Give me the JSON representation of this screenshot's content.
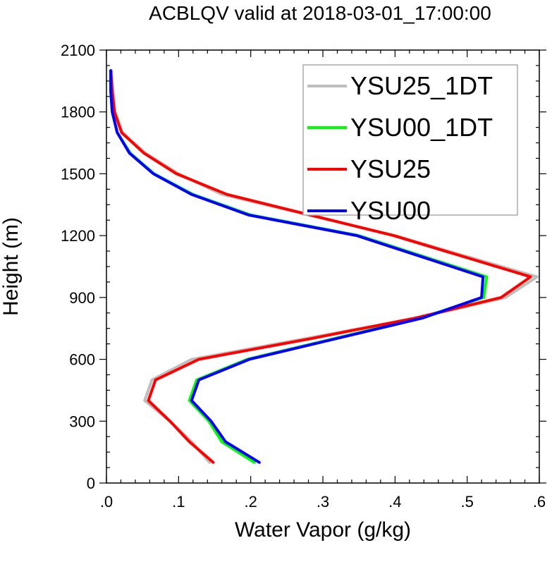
{
  "chart_data": {
    "type": "line",
    "title": "ACBLQV valid at 2018-03-01_17:00:00",
    "xlabel": "Water Vapor (g/kg)",
    "ylabel": "Height (m)",
    "xlim": [
      0.0,
      0.6
    ],
    "ylim": [
      0,
      2100
    ],
    "x_ticks": [
      0.0,
      0.1,
      0.2,
      0.3,
      0.4,
      0.5,
      0.6
    ],
    "x_tick_labels": [
      ".0",
      ".1",
      ".2",
      ".3",
      ".4",
      ".5",
      ".6"
    ],
    "y_ticks": [
      0,
      300,
      600,
      900,
      1200,
      1500,
      1800,
      2100
    ],
    "y_tick_labels": [
      "0",
      "300",
      "600",
      "900",
      "1200",
      "1500",
      "1800",
      "2100"
    ],
    "grid": false,
    "legend_position": "top-right",
    "series": [
      {
        "name": "YSU25_1DT",
        "color": "#bebebe",
        "points": [
          [
            0.143,
            100
          ],
          [
            0.118,
            200
          ],
          [
            0.088,
            300
          ],
          [
            0.053,
            400
          ],
          [
            0.063,
            500
          ],
          [
            0.118,
            600
          ],
          [
            0.275,
            700
          ],
          [
            0.43,
            800
          ],
          [
            0.553,
            900
          ],
          [
            0.597,
            1000
          ],
          [
            0.4,
            1200
          ],
          [
            0.16,
            1400
          ],
          [
            0.1,
            1500
          ],
          [
            0.054,
            1600
          ],
          [
            0.022,
            1700
          ],
          [
            0.012,
            1800
          ],
          [
            0.009,
            1900
          ],
          [
            0.007,
            2000
          ]
        ]
      },
      {
        "name": "YSU00_1DT",
        "color": "#00ff00",
        "points": [
          [
            0.205,
            100
          ],
          [
            0.16,
            200
          ],
          [
            0.142,
            300
          ],
          [
            0.115,
            400
          ],
          [
            0.125,
            500
          ],
          [
            0.195,
            600
          ],
          [
            0.315,
            700
          ],
          [
            0.435,
            800
          ],
          [
            0.523,
            900
          ],
          [
            0.527,
            1000
          ],
          [
            0.35,
            1200
          ],
          [
            0.2,
            1300
          ],
          [
            0.12,
            1400
          ],
          [
            0.066,
            1500
          ],
          [
            0.033,
            1600
          ],
          [
            0.015,
            1700
          ],
          [
            0.008,
            1800
          ],
          [
            0.006,
            1900
          ],
          [
            0.006,
            2000
          ]
        ]
      },
      {
        "name": "YSU25",
        "color": "#ff0000",
        "points": [
          [
            0.148,
            100
          ],
          [
            0.115,
            200
          ],
          [
            0.088,
            300
          ],
          [
            0.058,
            400
          ],
          [
            0.068,
            500
          ],
          [
            0.128,
            600
          ],
          [
            0.283,
            700
          ],
          [
            0.428,
            800
          ],
          [
            0.547,
            900
          ],
          [
            0.588,
            1000
          ],
          [
            0.398,
            1200
          ],
          [
            0.167,
            1400
          ],
          [
            0.097,
            1500
          ],
          [
            0.052,
            1600
          ],
          [
            0.021,
            1700
          ],
          [
            0.011,
            1800
          ],
          [
            0.008,
            1900
          ],
          [
            0.006,
            2000
          ]
        ]
      },
      {
        "name": "YSU00",
        "color": "#0000ff",
        "points": [
          [
            0.212,
            100
          ],
          [
            0.165,
            200
          ],
          [
            0.145,
            300
          ],
          [
            0.118,
            400
          ],
          [
            0.128,
            500
          ],
          [
            0.198,
            600
          ],
          [
            0.318,
            700
          ],
          [
            0.438,
            800
          ],
          [
            0.52,
            900
          ],
          [
            0.522,
            1000
          ],
          [
            0.347,
            1200
          ],
          [
            0.197,
            1300
          ],
          [
            0.118,
            1400
          ],
          [
            0.065,
            1500
          ],
          [
            0.032,
            1600
          ],
          [
            0.015,
            1700
          ],
          [
            0.008,
            1800
          ],
          [
            0.006,
            1900
          ],
          [
            0.006,
            2000
          ]
        ]
      }
    ]
  }
}
